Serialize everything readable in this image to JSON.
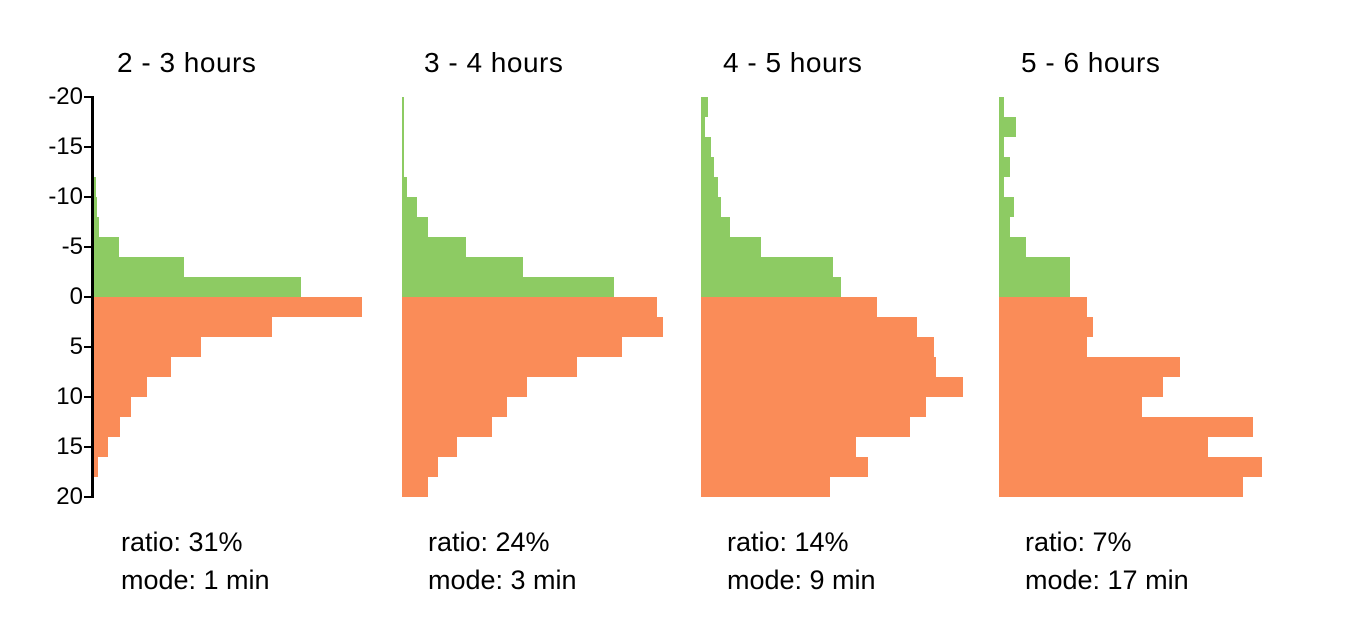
{
  "figure": {
    "background": "#ffffff",
    "description": "Four back-to-back horizontal histograms of minutes (negative above zero in green, positive below zero in orange), 2-minute bins, shared y-axis -20 to 20"
  },
  "colors": {
    "green": "#8dcb63",
    "orange": "#fa8c58",
    "axis": "#000000",
    "text": "#000000"
  },
  "axis": {
    "min": -20,
    "max": 20,
    "ticks": [
      -20,
      -15,
      -10,
      -5,
      0,
      5,
      10,
      15,
      20
    ]
  },
  "chart_data": [
    {
      "type": "bar",
      "orientation": "horizontal-histogram",
      "title": "2 - 3 hours",
      "ratio_text": "ratio: 31%",
      "mode_text": "mode: 1 min",
      "ratio_percent": 31,
      "mode_minutes": 1,
      "bin_size_minutes": 2,
      "ylim": [
        -20,
        20
      ],
      "length_unit": "screen px (no x-axis scale shown)",
      "series": [
        {
          "name": "negative-minutes",
          "color_key": "green",
          "bins": [
            {
              "start": -12,
              "end": -10,
              "len": 2
            },
            {
              "start": -10,
              "end": -8,
              "len": 3
            },
            {
              "start": -8,
              "end": -6,
              "len": 5
            },
            {
              "start": -6,
              "end": -4,
              "len": 25
            },
            {
              "start": -4,
              "end": -2,
              "len": 90
            },
            {
              "start": -2,
              "end": 0,
              "len": 207
            }
          ]
        },
        {
          "name": "positive-minutes",
          "color_key": "orange",
          "bins": [
            {
              "start": 0,
              "end": 2,
              "len": 268
            },
            {
              "start": 2,
              "end": 4,
              "len": 178
            },
            {
              "start": 4,
              "end": 6,
              "len": 107
            },
            {
              "start": 6,
              "end": 8,
              "len": 77
            },
            {
              "start": 8,
              "end": 10,
              "len": 53
            },
            {
              "start": 10,
              "end": 12,
              "len": 37
            },
            {
              "start": 12,
              "end": 14,
              "len": 26
            },
            {
              "start": 14,
              "end": 16,
              "len": 14
            },
            {
              "start": 16,
              "end": 18,
              "len": 4
            }
          ]
        }
      ]
    },
    {
      "type": "bar",
      "orientation": "horizontal-histogram",
      "title": "3 - 4 hours",
      "ratio_text": "ratio: 24%",
      "mode_text": "mode: 3 min",
      "ratio_percent": 24,
      "mode_minutes": 3,
      "bin_size_minutes": 2,
      "ylim": [
        -20,
        20
      ],
      "length_unit": "screen px (no x-axis scale shown)",
      "series": [
        {
          "name": "negative-minutes",
          "color_key": "green",
          "bins": [
            {
              "start": -20,
              "end": -18,
              "len": 1.5
            },
            {
              "start": -18,
              "end": -16,
              "len": 1.5
            },
            {
              "start": -16,
              "end": -14,
              "len": 1.5
            },
            {
              "start": -14,
              "end": -12,
              "len": 2
            },
            {
              "start": -12,
              "end": -10,
              "len": 5
            },
            {
              "start": -10,
              "end": -8,
              "len": 15
            },
            {
              "start": -8,
              "end": -6,
              "len": 26
            },
            {
              "start": -6,
              "end": -4,
              "len": 64
            },
            {
              "start": -4,
              "end": -2,
              "len": 121
            },
            {
              "start": -2,
              "end": 0,
              "len": 212
            }
          ]
        },
        {
          "name": "positive-minutes",
          "color_key": "orange",
          "bins": [
            {
              "start": 0,
              "end": 2,
              "len": 255
            },
            {
              "start": 2,
              "end": 4,
              "len": 261
            },
            {
              "start": 4,
              "end": 6,
              "len": 220
            },
            {
              "start": 6,
              "end": 8,
              "len": 175
            },
            {
              "start": 8,
              "end": 10,
              "len": 125
            },
            {
              "start": 10,
              "end": 12,
              "len": 105
            },
            {
              "start": 12,
              "end": 14,
              "len": 90
            },
            {
              "start": 14,
              "end": 16,
              "len": 55
            },
            {
              "start": 16,
              "end": 18,
              "len": 36
            },
            {
              "start": 18,
              "end": 20,
              "len": 26
            }
          ]
        }
      ]
    },
    {
      "type": "bar",
      "orientation": "horizontal-histogram",
      "title": "4 - 5 hours",
      "ratio_text": "ratio: 14%",
      "mode_text": "mode: 9 min",
      "ratio_percent": 14,
      "mode_minutes": 9,
      "bin_size_minutes": 2,
      "ylim": [
        -20,
        20
      ],
      "length_unit": "screen px (no x-axis scale shown)",
      "series": [
        {
          "name": "negative-minutes",
          "color_key": "green",
          "bins": [
            {
              "start": -20,
              "end": -18,
              "len": 7
            },
            {
              "start": -18,
              "end": -16,
              "len": 4
            },
            {
              "start": -16,
              "end": -14,
              "len": 10
            },
            {
              "start": -14,
              "end": -12,
              "len": 13
            },
            {
              "start": -12,
              "end": -10,
              "len": 17
            },
            {
              "start": -10,
              "end": -8,
              "len": 20
            },
            {
              "start": -8,
              "end": -6,
              "len": 29
            },
            {
              "start": -6,
              "end": -4,
              "len": 60
            },
            {
              "start": -4,
              "end": -2,
              "len": 132
            },
            {
              "start": -2,
              "end": 0,
              "len": 140
            }
          ]
        },
        {
          "name": "positive-minutes",
          "color_key": "orange",
          "bins": [
            {
              "start": 0,
              "end": 2,
              "len": 176
            },
            {
              "start": 2,
              "end": 4,
              "len": 216
            },
            {
              "start": 4,
              "end": 6,
              "len": 233
            },
            {
              "start": 6,
              "end": 8,
              "len": 235
            },
            {
              "start": 8,
              "end": 10,
              "len": 262
            },
            {
              "start": 10,
              "end": 12,
              "len": 225
            },
            {
              "start": 12,
              "end": 14,
              "len": 209
            },
            {
              "start": 14,
              "end": 16,
              "len": 155
            },
            {
              "start": 16,
              "end": 18,
              "len": 167
            },
            {
              "start": 18,
              "end": 20,
              "len": 129
            }
          ]
        }
      ]
    },
    {
      "type": "bar",
      "orientation": "horizontal-histogram",
      "title": "5 - 6 hours",
      "ratio_text": "ratio: 7%",
      "mode_text": "mode: 17 min",
      "ratio_percent": 7,
      "mode_minutes": 17,
      "bin_size_minutes": 2,
      "ylim": [
        -20,
        20
      ],
      "length_unit": "screen px (no x-axis scale shown)",
      "series": [
        {
          "name": "negative-minutes",
          "color_key": "green",
          "bins": [
            {
              "start": -20,
              "end": -18,
              "len": 5
            },
            {
              "start": -18,
              "end": -16,
              "len": 17
            },
            {
              "start": -16,
              "end": -14,
              "len": 5
            },
            {
              "start": -14,
              "end": -12,
              "len": 11
            },
            {
              "start": -12,
              "end": -10,
              "len": 5
            },
            {
              "start": -10,
              "end": -8,
              "len": 15
            },
            {
              "start": -8,
              "end": -6,
              "len": 11
            },
            {
              "start": -6,
              "end": -4,
              "len": 27
            },
            {
              "start": -4,
              "end": -2,
              "len": 71
            },
            {
              "start": -2,
              "end": 0,
              "len": 71
            }
          ]
        },
        {
          "name": "positive-minutes",
          "color_key": "orange",
          "bins": [
            {
              "start": 0,
              "end": 2,
              "len": 88
            },
            {
              "start": 2,
              "end": 4,
              "len": 94
            },
            {
              "start": 4,
              "end": 6,
              "len": 88
            },
            {
              "start": 6,
              "end": 8,
              "len": 181
            },
            {
              "start": 8,
              "end": 10,
              "len": 164
            },
            {
              "start": 10,
              "end": 12,
              "len": 143
            },
            {
              "start": 12,
              "end": 14,
              "len": 254
            },
            {
              "start": 14,
              "end": 16,
              "len": 209
            },
            {
              "start": 16,
              "end": 18,
              "len": 263
            },
            {
              "start": 18,
              "end": 20,
              "len": 244
            }
          ]
        }
      ]
    }
  ]
}
